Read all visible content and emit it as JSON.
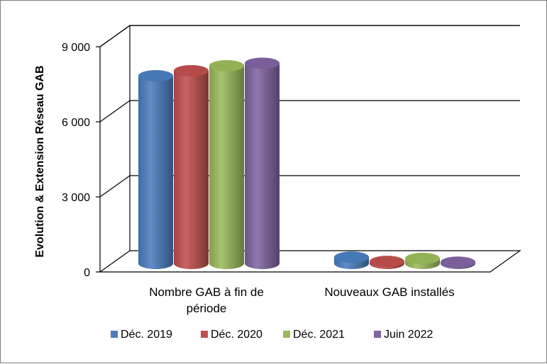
{
  "chart_data": {
    "type": "bar",
    "style": "3d-cylinder",
    "ylabel": "Evolution & Extension Réseau GAB",
    "ylim": [
      0,
      9000
    ],
    "yticks": [
      {
        "value": 0,
        "label": "0"
      },
      {
        "value": 3000,
        "label": "3 000"
      },
      {
        "value": 6000,
        "label": "6 000"
      },
      {
        "value": 9000,
        "label": "9 000"
      }
    ],
    "categories": [
      {
        "lines": [
          "Nombre GAB à fin de",
          "période"
        ]
      },
      {
        "lines": [
          "Nouveaux GAB installés"
        ]
      }
    ],
    "series": [
      {
        "name": "Déc. 2019",
        "color": "#4a7ebf",
        "values": [
          7500,
          250
        ]
      },
      {
        "name": "Déc. 2020",
        "color": "#c0504d",
        "values": [
          7700,
          80
        ]
      },
      {
        "name": "Déc. 2021",
        "color": "#9bbb59",
        "values": [
          7900,
          200
        ]
      },
      {
        "name": "Juin 2022",
        "color": "#8064a2",
        "values": [
          8000,
          50
        ]
      }
    ],
    "grid": true,
    "legend_position": "bottom"
  }
}
